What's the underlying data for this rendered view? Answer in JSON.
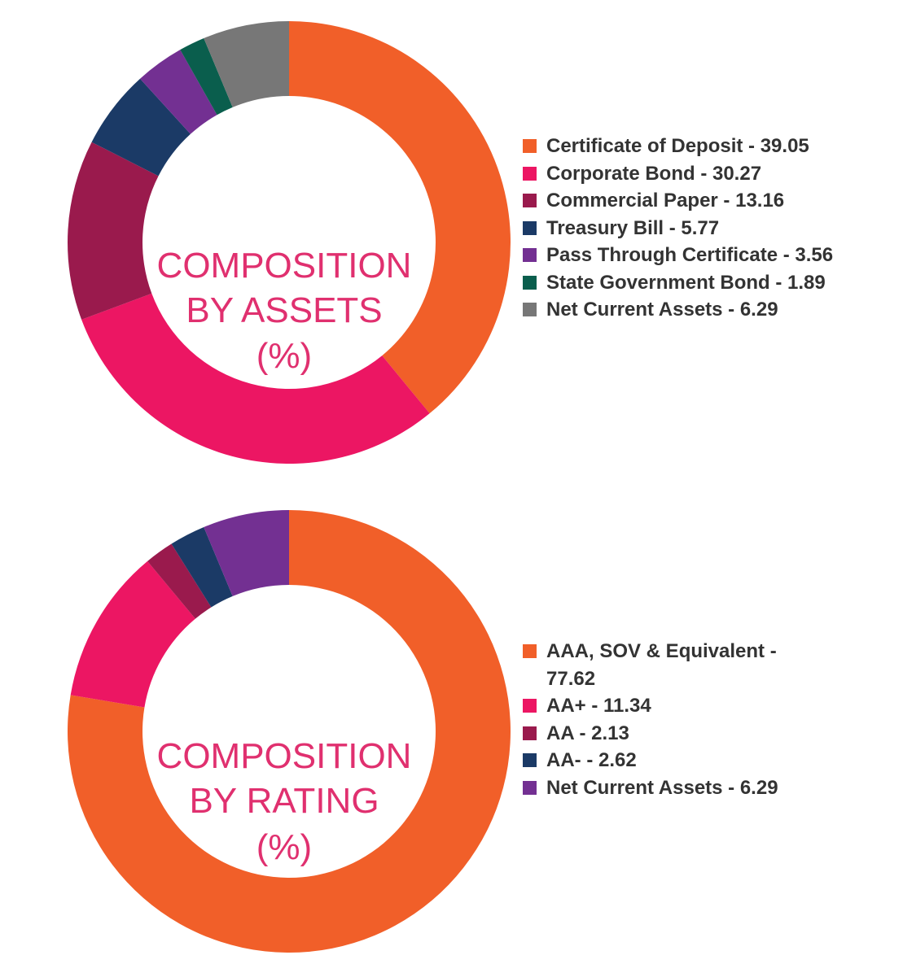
{
  "chart_data": [
    {
      "type": "pie",
      "title": "COMPOSITION BY ASSETS (%)",
      "title_lines": [
        "COMPOSITION",
        "BY ASSETS",
        "(%)"
      ],
      "categories": [
        "Certificate of Deposit",
        "Corporate Bond",
        "Commercial Paper",
        "Treasury Bill",
        "Pass Through Certificate",
        "State Government Bond",
        "Net Current Assets"
      ],
      "values": [
        39.05,
        30.27,
        13.16,
        5.77,
        3.56,
        1.89,
        6.29
      ],
      "colors": [
        "#f15f29",
        "#ec1663",
        "#9a1a4d",
        "#1b3a66",
        "#733092",
        "#0a5e4d",
        "#777777"
      ],
      "legend_labels": [
        "Certificate of Deposit - 39.05",
        "Corporate Bond - 30.27",
        "Commercial Paper - 13.16",
        "Treasury Bill - 5.77",
        "Pass Through Certificate - 3.56",
        "State Government Bond - 1.89",
        "Net Current Assets - 6.29"
      ],
      "legend_position": "right"
    },
    {
      "type": "pie",
      "title": "COMPOSITION BY RATING (%)",
      "title_lines": [
        "COMPOSITION",
        "BY RATING",
        "(%)"
      ],
      "categories": [
        "AAA, SOV & Equivalent",
        "AA+",
        "AA",
        "AA-",
        "Net Current Assets"
      ],
      "values": [
        77.62,
        11.34,
        2.13,
        2.62,
        6.29
      ],
      "colors": [
        "#f15f29",
        "#ec1663",
        "#9a1a4d",
        "#1b3a66",
        "#733092"
      ],
      "legend_labels": [
        "AAA, SOV & Equivalent - 77.62",
        "AA+ - 11.34",
        "AA - 2.13",
        "AA- - 2.62",
        "Net Current Assets - 6.29"
      ],
      "legend_position": "right"
    }
  ]
}
